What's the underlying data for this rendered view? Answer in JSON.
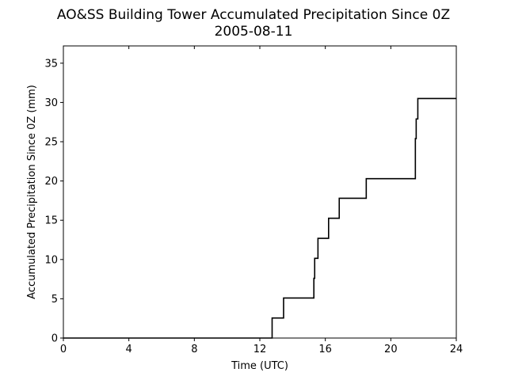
{
  "chart_data": {
    "type": "line",
    "title": "AO&SS Building Tower Accumulated Precipitation Since 0Z",
    "subtitle": "2005-08-11",
    "xlabel": "Time (UTC)",
    "ylabel": "Accumulated Precipitation Since 0Z (mm)",
    "xlim": [
      0,
      24
    ],
    "ylim": [
      0,
      37.2
    ],
    "xticks": [
      0,
      4,
      8,
      12,
      16,
      20,
      24
    ],
    "yticks": [
      0,
      5,
      10,
      15,
      20,
      25,
      30,
      35
    ],
    "grid": false,
    "legend": "none",
    "line_color": "#000000",
    "series": [
      {
        "x": [
          0,
          12.75,
          12.75,
          13.45,
          13.45,
          15.3,
          15.3,
          15.35,
          15.35,
          15.55,
          15.55,
          16.2,
          16.2,
          16.85,
          16.85,
          18.5,
          18.5,
          21.5,
          21.5,
          21.55,
          21.55,
          21.65,
          21.65,
          24
        ],
        "y": [
          0,
          0,
          2.55,
          2.55,
          5.1,
          5.1,
          7.6,
          7.6,
          10.15,
          10.15,
          12.7,
          12.7,
          15.25,
          15.25,
          17.8,
          17.8,
          20.3,
          20.3,
          25.4,
          25.4,
          27.9,
          27.9,
          30.5,
          30.5
        ]
      }
    ]
  }
}
